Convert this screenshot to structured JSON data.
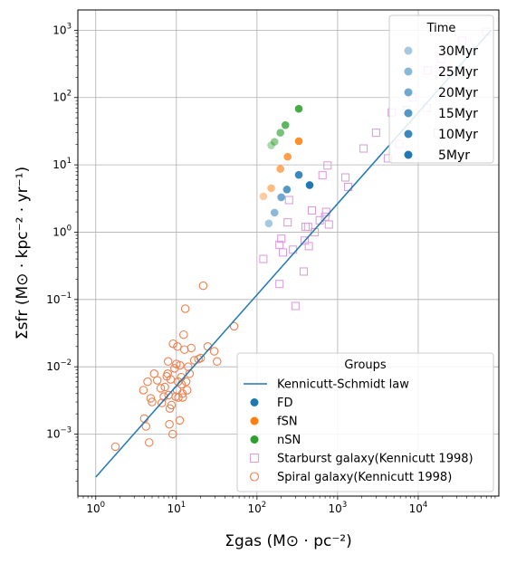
{
  "chart_data": {
    "type": "scatter",
    "xscale": "log",
    "yscale": "log",
    "xlim": [
      0.6,
      100000
    ],
    "ylim": [
      0.00012,
      2000
    ],
    "grid": true,
    "xlabel": "Σgas  (M⊙ · pc⁻²)",
    "ylabel": "Σsfr  (M⊙ · kpc⁻² · yr⁻¹)",
    "x_ticks": [
      {
        "value": 1,
        "base": "10",
        "exp": "0"
      },
      {
        "value": 10,
        "base": "10",
        "exp": "1"
      },
      {
        "value": 100,
        "base": "10",
        "exp": "2"
      },
      {
        "value": 1000,
        "base": "10",
        "exp": "3"
      },
      {
        "value": 10000,
        "base": "10",
        "exp": "4"
      }
    ],
    "y_ticks": [
      {
        "value": 0.001,
        "base": "10",
        "exp": "−3"
      },
      {
        "value": 0.01,
        "base": "10",
        "exp": "−2"
      },
      {
        "value": 0.1,
        "base": "10",
        "exp": "−1"
      },
      {
        "value": 1,
        "base": "10",
        "exp": "0"
      },
      {
        "value": 10,
        "base": "10",
        "exp": "1"
      },
      {
        "value": 100,
        "base": "10",
        "exp": "2"
      },
      {
        "value": 1000,
        "base": "10",
        "exp": "3"
      }
    ],
    "kennicutt_line": {
      "name": "Kennicutt-Schmidt law",
      "color": "#1f77b4",
      "x": [
        1,
        80000
      ],
      "y": [
        0.00023,
        1000
      ]
    },
    "simulations": [
      {
        "group": "FD",
        "color": "#1f77b4",
        "points": [
          [
            140,
            1.35
          ],
          [
            165,
            1.95
          ],
          [
            200,
            3.3
          ],
          [
            235,
            4.3
          ],
          [
            330,
            7.1
          ],
          [
            450,
            5.0
          ]
        ]
      },
      {
        "group": "fSN",
        "color": "#ff7f0e",
        "points": [
          [
            120,
            3.4
          ],
          [
            150,
            4.5
          ],
          [
            195,
            8.7
          ],
          [
            240,
            13.2
          ],
          [
            330,
            22.5
          ]
        ]
      },
      {
        "group": "nSN",
        "color": "#2ca02c",
        "points": [
          [
            150,
            19.5
          ],
          [
            165,
            22.0
          ],
          [
            195,
            30.0
          ],
          [
            225,
            39.0
          ],
          [
            330,
            68.0
          ]
        ]
      }
    ],
    "time_alpha": [
      0.4,
      0.52,
      0.64,
      0.76,
      0.88,
      1.0
    ],
    "starburst": {
      "name": "Starburst galaxy(Kennicutt 1998)",
      "color": "#dda0dd",
      "points": [
        [
          120,
          0.4
        ],
        [
          190,
          0.65
        ],
        [
          200,
          0.8
        ],
        [
          210,
          0.5
        ],
        [
          190,
          0.17
        ],
        [
          240,
          1.4
        ],
        [
          250,
          3.0
        ],
        [
          280,
          0.55
        ],
        [
          300,
          0.08
        ],
        [
          380,
          0.26
        ],
        [
          390,
          0.75
        ],
        [
          400,
          1.2
        ],
        [
          430,
          1.2
        ],
        [
          440,
          0.62
        ],
        [
          480,
          2.1
        ],
        [
          520,
          1.0
        ],
        [
          600,
          1.5
        ],
        [
          650,
          7.0
        ],
        [
          700,
          1.7
        ],
        [
          720,
          2.0
        ],
        [
          750,
          9.8
        ],
        [
          780,
          1.3
        ],
        [
          1250,
          6.5
        ],
        [
          1350,
          4.7
        ],
        [
          2100,
          17.5
        ],
        [
          3000,
          30.0
        ],
        [
          4200,
          12.5
        ],
        [
          4700,
          60.0
        ],
        [
          5800,
          20.5
        ],
        [
          7200,
          65.0
        ],
        [
          8500,
          100.0
        ],
        [
          12800,
          70.0
        ],
        [
          13100,
          255.0
        ],
        [
          17500,
          30.0
        ],
        [
          19000,
          380.0
        ],
        [
          20800,
          250.0
        ],
        [
          35000,
          700.0
        ],
        [
          70000,
          950.0
        ]
      ]
    },
    "spiral": {
      "name": "Spiral galaxy(Kennicutt 1998)",
      "color": "#f08050",
      "points": [
        [
          1.75,
          0.00065
        ],
        [
          3.9,
          0.0045
        ],
        [
          4.0,
          0.0017
        ],
        [
          4.2,
          0.0013
        ],
        [
          4.4,
          0.006
        ],
        [
          4.6,
          0.00075
        ],
        [
          4.8,
          0.0034
        ],
        [
          5.0,
          0.003
        ],
        [
          5.3,
          0.0079
        ],
        [
          5.8,
          0.0063
        ],
        [
          6.4,
          0.0048
        ],
        [
          6.6,
          0.0029
        ],
        [
          7.0,
          0.0036
        ],
        [
          7.2,
          0.005
        ],
        [
          7.6,
          0.0072
        ],
        [
          7.8,
          0.0079
        ],
        [
          7.9,
          0.012
        ],
        [
          8.0,
          0.0038
        ],
        [
          8.2,
          0.0014
        ],
        [
          8.3,
          0.0024
        ],
        [
          8.5,
          0.0065
        ],
        [
          8.7,
          0.0027
        ],
        [
          9.0,
          0.001
        ],
        [
          9.1,
          0.022
        ],
        [
          9.5,
          0.0095
        ],
        [
          9.8,
          0.0036
        ],
        [
          10.0,
          0.011
        ],
        [
          10.2,
          0.0045
        ],
        [
          10.3,
          0.02
        ],
        [
          10.5,
          0.006
        ],
        [
          10.6,
          0.0035
        ],
        [
          11.0,
          0.0016
        ],
        [
          11.1,
          0.0105
        ],
        [
          11.5,
          0.007
        ],
        [
          11.6,
          0.0055
        ],
        [
          11.9,
          0.004
        ],
        [
          12.0,
          0.0035
        ],
        [
          12.3,
          0.03
        ],
        [
          12.6,
          0.018
        ],
        [
          12.9,
          0.073
        ],
        [
          13.2,
          0.006
        ],
        [
          13.6,
          0.0045
        ],
        [
          14.0,
          0.01
        ],
        [
          14.6,
          0.0079
        ],
        [
          15.3,
          0.019
        ],
        [
          16.7,
          0.0125
        ],
        [
          18.8,
          0.013
        ],
        [
          20.0,
          0.0135
        ],
        [
          21.5,
          0.16
        ],
        [
          24.5,
          0.02
        ],
        [
          29.5,
          0.017
        ],
        [
          32.0,
          0.012
        ],
        [
          52.0,
          0.04
        ]
      ]
    }
  },
  "legend_time": {
    "title": "Time",
    "items": [
      {
        "label": "30Myr",
        "alpha": 0.4
      },
      {
        "label": "25Myr",
        "alpha": 0.52
      },
      {
        "label": "20Myr",
        "alpha": 0.64
      },
      {
        "label": "15Myr",
        "alpha": 0.76
      },
      {
        "label": "10Myr",
        "alpha": 0.88
      },
      {
        "label": "5Myr",
        "alpha": 1.0
      }
    ],
    "marker_color": "#1f77b4"
  },
  "legend_groups": {
    "title": "Groups",
    "items": [
      {
        "label": "Kennicutt-Schmidt law",
        "kind": "line",
        "color": "#1f77b4"
      },
      {
        "label": "FD",
        "kind": "dot",
        "color": "#1f77b4"
      },
      {
        "label": "fSN",
        "kind": "dot",
        "color": "#ff7f0e"
      },
      {
        "label": "nSN",
        "kind": "dot",
        "color": "#2ca02c"
      },
      {
        "label": "Starburst galaxy(Kennicutt 1998)",
        "kind": "square",
        "color": "#dda0dd"
      },
      {
        "label": "Spiral galaxy(Kennicutt 1998)",
        "kind": "ring",
        "color": "#f08050"
      }
    ]
  }
}
